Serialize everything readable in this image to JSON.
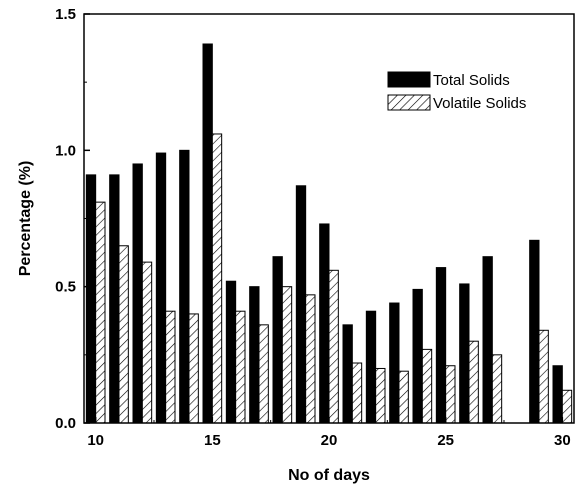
{
  "chart_data": {
    "type": "bar",
    "xlabel": "No of days",
    "ylabel": "Percentage (%)",
    "x": [
      10,
      11,
      12,
      13,
      14,
      15,
      16,
      17,
      18,
      19,
      20,
      21,
      22,
      23,
      24,
      25,
      26,
      27,
      29,
      30
    ],
    "series": [
      {
        "name": "Total Solids",
        "fill": "#000000",
        "values": [
          0.91,
          0.91,
          0.95,
          0.99,
          1.0,
          1.39,
          0.52,
          0.5,
          0.61,
          0.87,
          0.73,
          0.36,
          0.41,
          0.44,
          0.49,
          0.57,
          0.51,
          0.61,
          0.67,
          0.21
        ]
      },
      {
        "name": "Volatile Solids",
        "fill": "hatched",
        "values": [
          0.81,
          0.65,
          0.59,
          0.41,
          0.4,
          1.06,
          0.41,
          0.36,
          0.5,
          0.47,
          0.56,
          0.22,
          0.2,
          0.19,
          0.27,
          0.21,
          0.3,
          0.25,
          0.34,
          0.12
        ]
      }
    ],
    "xlim": [
      9.5,
      30.5
    ],
    "ylim": [
      0,
      1.5
    ],
    "xticks": [
      "10",
      "15",
      "20",
      "25",
      "30"
    ],
    "yticks": [
      "0.0",
      "0.5",
      "1.0",
      "1.5"
    ],
    "legend_position": "top-right",
    "grid": false
  }
}
